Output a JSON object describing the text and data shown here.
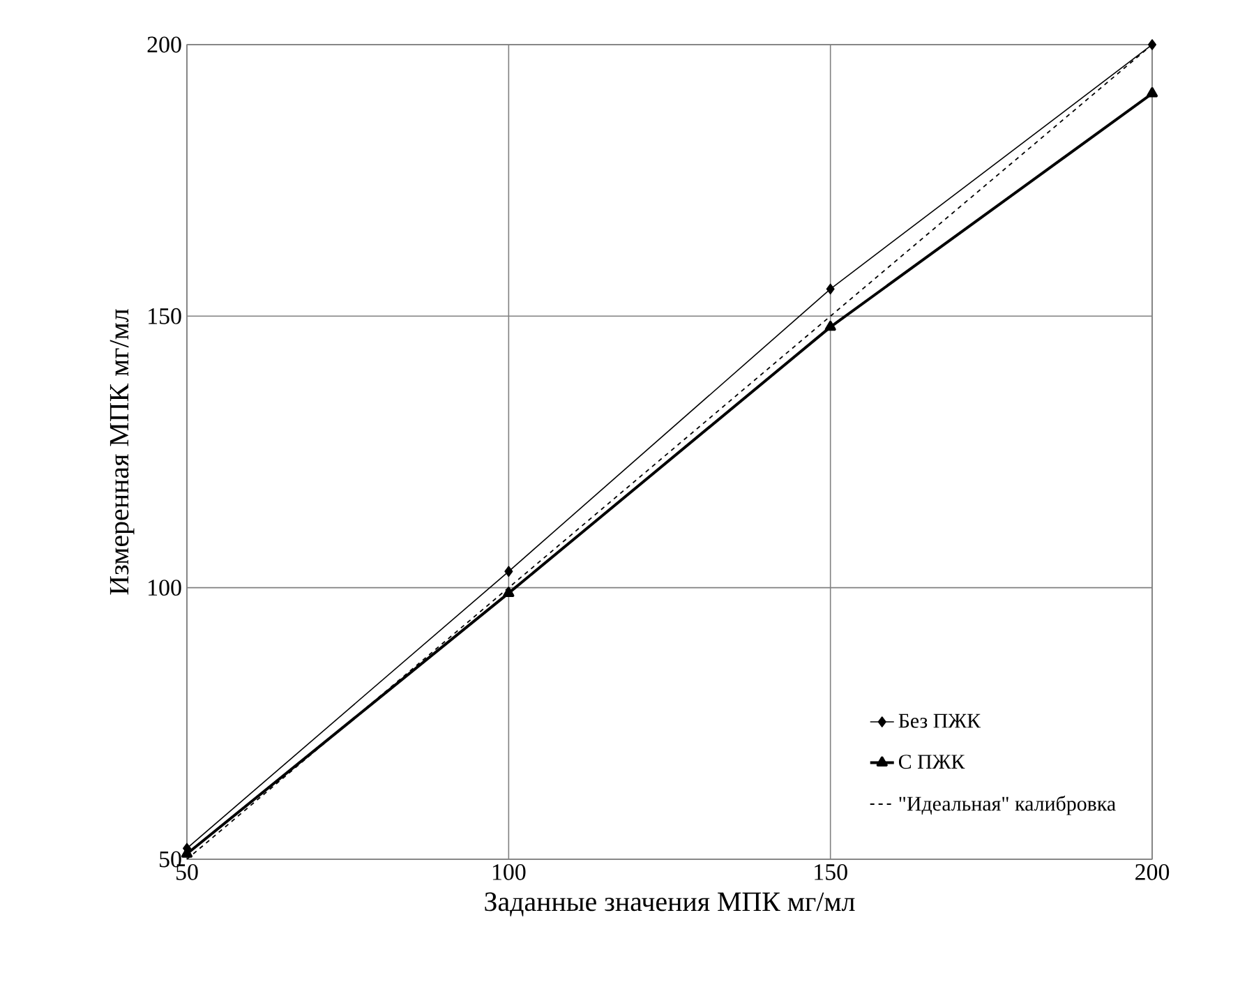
{
  "chart_data": {
    "type": "line",
    "xlabel": "Заданные значения МПК мг/мл",
    "ylabel": "Измеренная  МПК мг/мл",
    "x": [
      50,
      100,
      150,
      200
    ],
    "series": [
      {
        "name": "Без ПЖК",
        "color": "#000000",
        "values": [
          52,
          103,
          155,
          200
        ],
        "marker": "diamond",
        "line_style": "solid"
      },
      {
        "name": "С ПЖК",
        "color": "#000000",
        "values": [
          51,
          99,
          148,
          191
        ],
        "marker": "triangle",
        "line_style": "solid"
      },
      {
        "name": "\"Идеальная\"  калибровка",
        "color": "#000000",
        "values": [
          50,
          100,
          150,
          200
        ],
        "marker": "none",
        "line_style": "dashed"
      }
    ],
    "xlim": [
      50,
      200
    ],
    "ylim": [
      50,
      200
    ],
    "xticks": [
      50,
      100,
      150,
      200
    ],
    "yticks": [
      50,
      100,
      150,
      200
    ],
    "grid": true,
    "legend": "bottom right"
  }
}
